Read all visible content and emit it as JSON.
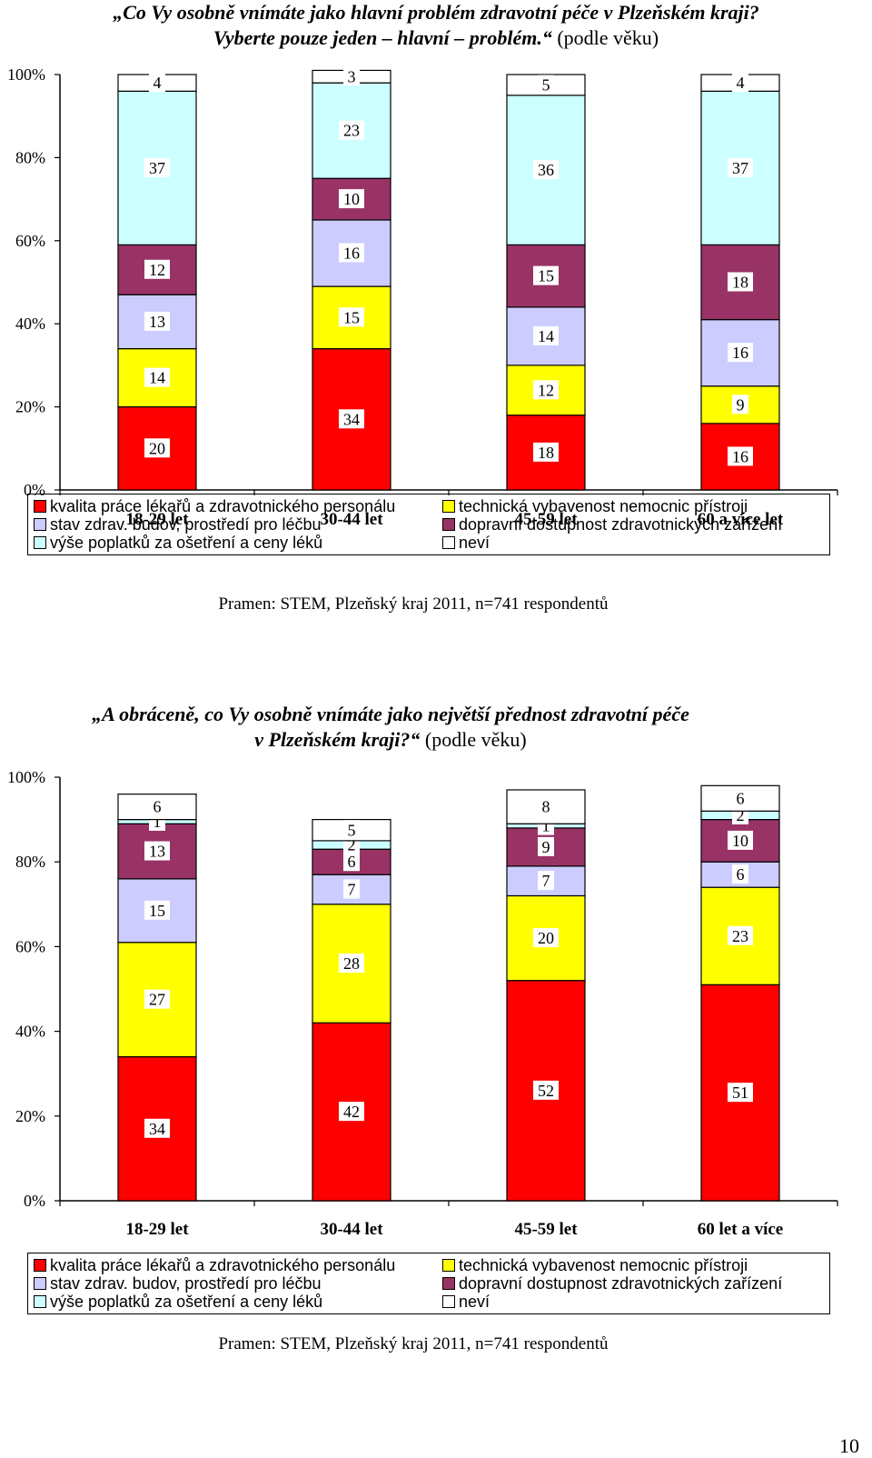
{
  "colors": {
    "kvalita": "#ff0000",
    "technicka": "#ffff00",
    "stav": "#ccccff",
    "dopravni": "#993366",
    "poplatky": "#ccffff",
    "nevi": "#ffffff"
  },
  "chart_data": [
    {
      "type": "bar",
      "stacked": true,
      "title_bold_1": "„Co Vy osobně vnímáte jako hlavní problém zdravotní péče v Plzeňském kraji?",
      "title_bold_2": "Vyberte pouze jeden – hlavní – problém.“",
      "title_suffix": " (podle věku)",
      "categories": [
        "18-29 let",
        "30-44 let",
        "45-59 let",
        "60 a více let"
      ],
      "yticks": [
        "0%",
        "20%",
        "40%",
        "60%",
        "80%",
        "100%"
      ],
      "ylim": [
        0,
        100
      ],
      "series": [
        {
          "name": "kvalita práce lékařů a zdravotnického personálu",
          "key": "kvalita",
          "values": [
            20,
            34,
            18,
            16
          ]
        },
        {
          "name": "technická vybavenost nemocnic přístroji",
          "key": "technicka",
          "values": [
            14,
            15,
            12,
            9
          ]
        },
        {
          "name": "stav zdrav. budov, prostředí pro léčbu",
          "key": "stav",
          "values": [
            13,
            16,
            14,
            16
          ]
        },
        {
          "name": "dopravní dostupnost zdravotnických zařízení",
          "key": "dopravni",
          "values": [
            12,
            10,
            15,
            18
          ]
        },
        {
          "name": "výše poplatků za ošetření a ceny léků",
          "key": "poplatky",
          "values": [
            37,
            23,
            36,
            37
          ]
        },
        {
          "name": "neví",
          "key": "nevi",
          "values": [
            4,
            3,
            5,
            4
          ]
        }
      ],
      "legend_order": [
        "kvalita",
        "technicka",
        "stav",
        "dopravni",
        "poplatky",
        "nevi"
      ],
      "legend_placement": "bottom",
      "source": "Pramen: STEM, Plzeňský kraj 2011,  n=741 respondentů"
    },
    {
      "type": "bar",
      "stacked": true,
      "title_bold_1": "„A obráceně, co Vy osobně vnímáte jako největší přednost zdravotní péče",
      "title_bold_2": "v Plzeňském kraji?“",
      "title_suffix": " (podle věku)",
      "categories": [
        "18-29 let",
        "30-44 let",
        "45-59 let",
        "60 let a více"
      ],
      "yticks": [
        "0%",
        "20%",
        "40%",
        "60%",
        "80%",
        "100%"
      ],
      "ylim": [
        0,
        100
      ],
      "series": [
        {
          "name": "kvalita práce lékařů a zdravotnického personálu",
          "key": "kvalita",
          "values": [
            34,
            42,
            52,
            51
          ]
        },
        {
          "name": "technická vybavenost nemocnic přístroji",
          "key": "technicka",
          "values": [
            27,
            28,
            20,
            23
          ]
        },
        {
          "name": "stav zdrav. budov, prostředí pro léčbu",
          "key": "stav",
          "values": [
            15,
            7,
            7,
            6
          ]
        },
        {
          "name": "dopravní dostupnost zdravotnických zařízení",
          "key": "dopravni",
          "values": [
            13,
            6,
            9,
            10
          ]
        },
        {
          "name": "výše poplatků za ošetření a ceny léků",
          "key": "poplatky",
          "values": [
            1,
            2,
            1,
            2
          ]
        },
        {
          "name": "neví",
          "key": "nevi",
          "values": [
            6,
            5,
            8,
            6
          ]
        }
      ],
      "legend_order": [
        "kvalita",
        "technicka",
        "stav",
        "dopravni",
        "poplatky",
        "nevi"
      ],
      "legend_placement": "bottom",
      "source": "Pramen: STEM, Plzeňský kraj 2011,  n=741 respondentů"
    }
  ],
  "page_number": "10"
}
